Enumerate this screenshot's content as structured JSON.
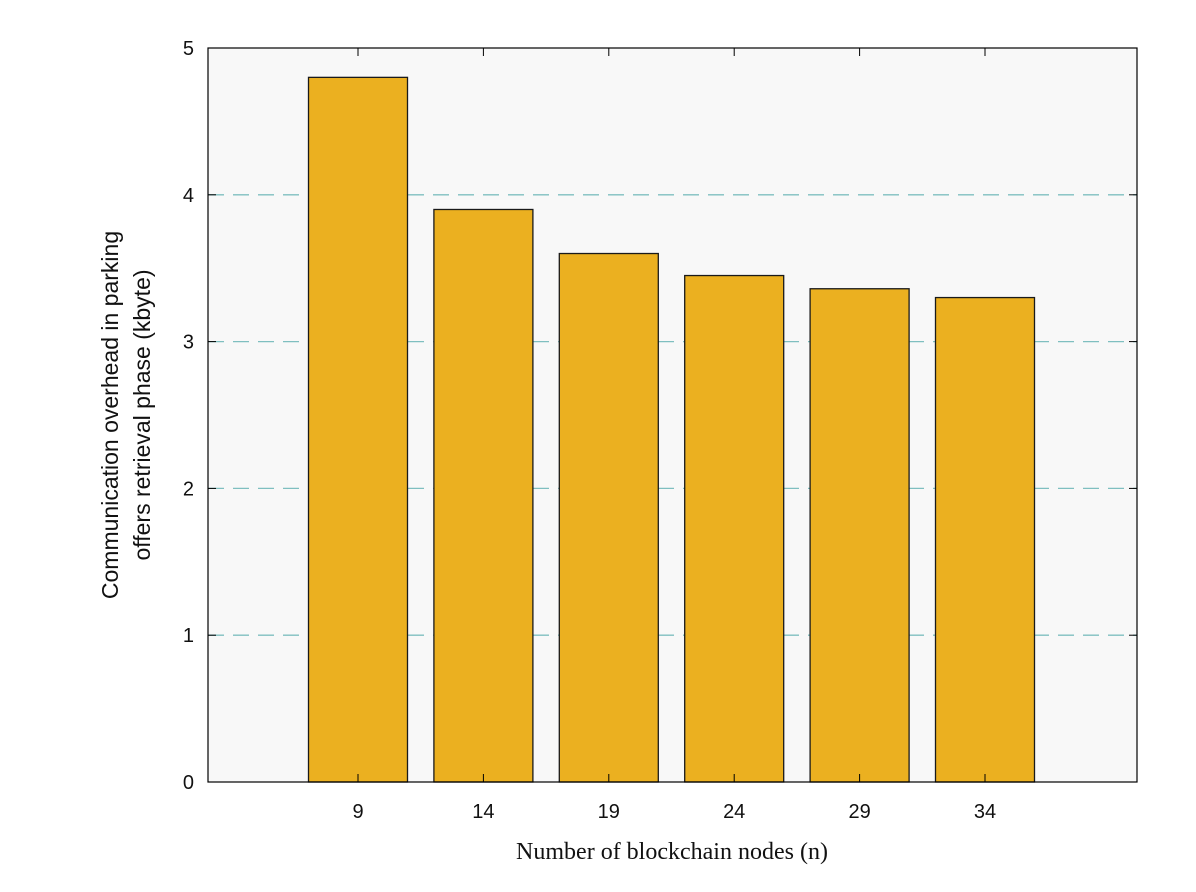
{
  "chart_data": {
    "type": "bar",
    "categories": [
      "9",
      "14",
      "19",
      "24",
      "29",
      "34"
    ],
    "values": [
      4.8,
      3.9,
      3.6,
      3.45,
      3.36,
      3.3
    ],
    "xlabel": "Number of blockchain nodes (n)",
    "ylabel_lines": [
      "Communication overhead in parking",
      "offers retrieval phase (kbyte)"
    ],
    "ylim": [
      0,
      5
    ],
    "yticks": [
      0,
      1,
      2,
      3,
      4,
      5
    ],
    "grid": "horizontal dashed at y = 1, 2, 3, 4",
    "legend": "none",
    "colors": {
      "bar_fill": "#EBB020",
      "bar_stroke": "#1a1a1a",
      "plot_background": "#F8F8F8",
      "grid_line": "#7FBFC0",
      "axis": "#000000"
    }
  }
}
